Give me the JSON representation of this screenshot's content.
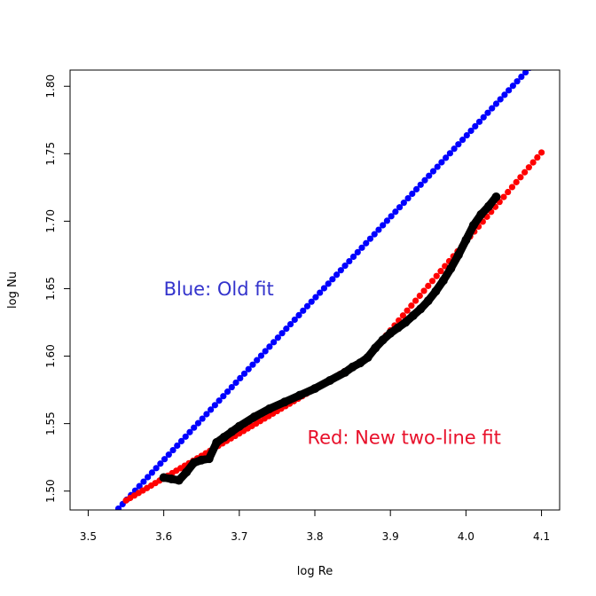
{
  "chart_data": {
    "type": "scatter",
    "title": "",
    "xlabel": "log Re",
    "ylabel": "log Nu",
    "xlim": [
      3.476,
      4.124
    ],
    "ylim": [
      1.486,
      1.812
    ],
    "xticks": [
      "3.5",
      "3.6",
      "3.7",
      "3.8",
      "3.9",
      "4.0",
      "4.1"
    ],
    "yticks": [
      "1.50",
      "1.55",
      "1.60",
      "1.65",
      "1.70",
      "1.75",
      "1.80"
    ],
    "grid": false,
    "annotations": [
      {
        "text": "Blue: Old fit",
        "x": 3.6,
        "y": 1.645,
        "color": "#3333cc"
      },
      {
        "text": "Red: New two-line fit",
        "x": 3.79,
        "y": 1.535,
        "color": "#e8102a"
      }
    ],
    "series": [
      {
        "color": "#0000ff",
        "style": "dotted-line",
        "x_start": 3.54,
        "x_end": 4.09,
        "n_points": 100,
        "segments": [
          {
            "x0": 3.54,
            "x1": 4.09,
            "slope": 0.6,
            "intercept": -0.637
          }
        ]
      },
      {
        "color": "#ff0000",
        "style": "dotted-line",
        "x_start": 3.55,
        "x_end": 4.1,
        "n_points": 100,
        "segments": [
          {
            "x0": 3.55,
            "x1": 3.87,
            "slope": 0.331,
            "intercept": 0.318
          },
          {
            "x0": 3.87,
            "x1": 4.1,
            "slope": 0.659,
            "intercept": -0.951
          }
        ]
      },
      {
        "color": "#000000",
        "style": "data",
        "points": [
          [
            3.6,
            1.51
          ],
          [
            3.61,
            1.509
          ],
          [
            3.62,
            1.508
          ],
          [
            3.63,
            1.514
          ],
          [
            3.64,
            1.521
          ],
          [
            3.65,
            1.523
          ],
          [
            3.66,
            1.524
          ],
          [
            3.67,
            1.536
          ],
          [
            3.68,
            1.54
          ],
          [
            3.69,
            1.544
          ],
          [
            3.7,
            1.548
          ],
          [
            3.72,
            1.555
          ],
          [
            3.74,
            1.561
          ],
          [
            3.76,
            1.566
          ],
          [
            3.78,
            1.571
          ],
          [
            3.8,
            1.576
          ],
          [
            3.82,
            1.582
          ],
          [
            3.84,
            1.588
          ],
          [
            3.85,
            1.592
          ],
          [
            3.86,
            1.595
          ],
          [
            3.87,
            1.599
          ],
          [
            3.88,
            1.606
          ],
          [
            3.89,
            1.612
          ],
          [
            3.9,
            1.617
          ],
          [
            3.91,
            1.621
          ],
          [
            3.92,
            1.625
          ],
          [
            3.93,
            1.63
          ],
          [
            3.94,
            1.635
          ],
          [
            3.95,
            1.641
          ],
          [
            3.96,
            1.648
          ],
          [
            3.97,
            1.656
          ],
          [
            3.98,
            1.665
          ],
          [
            3.99,
            1.675
          ],
          [
            4.0,
            1.686
          ],
          [
            4.01,
            1.697
          ],
          [
            4.02,
            1.705
          ],
          [
            4.03,
            1.711
          ],
          [
            4.04,
            1.718
          ]
        ]
      }
    ]
  }
}
